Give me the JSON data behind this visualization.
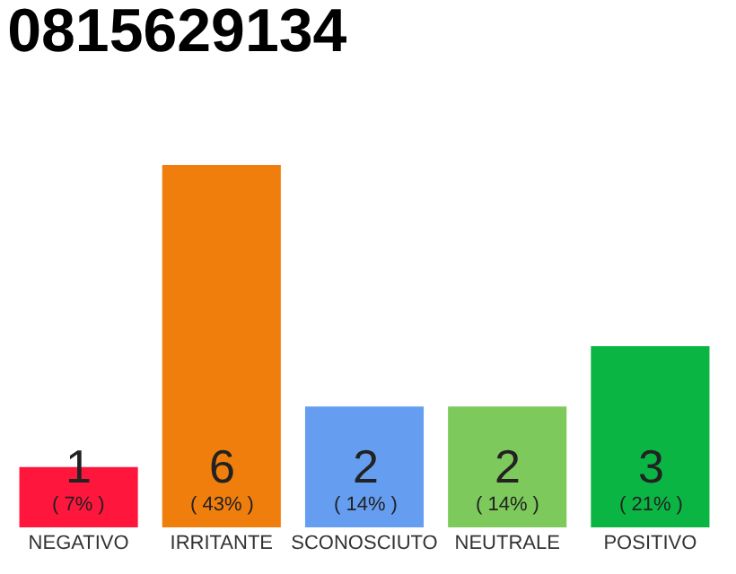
{
  "chart_data": {
    "type": "bar",
    "title": "0815629134",
    "categories": [
      "NEGATIVO",
      "IRRITANTE",
      "SCONOSCIUTO",
      "NEUTRALE",
      "POSITIVO"
    ],
    "values": [
      1,
      6,
      2,
      2,
      3
    ],
    "colors": [
      "#fe163c",
      "#f07e0c",
      "#659ef0",
      "#7dc95c",
      "#0bb544"
    ],
    "value_labels": [
      "1\n( 7% )",
      "6\n( 43% )",
      "2\n( 14% )",
      "2\n( 14% )",
      "3\n( 21% )"
    ],
    "legend": false
  }
}
